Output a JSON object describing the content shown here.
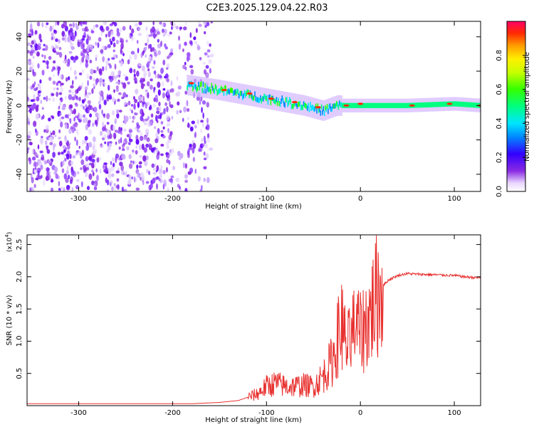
{
  "title": "C2E3.2025.129.04.22.R03",
  "chart_data": [
    {
      "type": "heatmap",
      "xlabel": "Height of straight line (km)",
      "ylabel": "Frequency (Hz)",
      "xlim": [
        -355,
        128
      ],
      "ylim": [
        -50,
        49
      ],
      "xticks": [
        -300,
        -200,
        -100,
        0,
        100
      ],
      "yticks": [
        -40,
        -20,
        0,
        20,
        40
      ],
      "colorbar": {
        "label": "Normalized spectral amplitude",
        "range": [
          0.0,
          1.0
        ],
        "ticks": [
          "0.0",
          "0.2",
          "0.4",
          "0.6",
          "0.8"
        ]
      },
      "features": {
        "noise_region_x": [
          -355,
          -158
        ],
        "signal_track": [
          {
            "x": -185,
            "y": 12
          },
          {
            "x": -150,
            "y": 9
          },
          {
            "x": -120,
            "y": 6
          },
          {
            "x": -90,
            "y": 3
          },
          {
            "x": -60,
            "y": 0
          },
          {
            "x": -40,
            "y": -3
          },
          {
            "x": -25,
            "y": 0
          },
          {
            "x": 0,
            "y": 0
          },
          {
            "x": 50,
            "y": 0
          },
          {
            "x": 100,
            "y": 1
          },
          {
            "x": 128,
            "y": 0
          }
        ]
      },
      "grid": false
    },
    {
      "type": "line",
      "xlabel": "Height of straight line (km)",
      "ylabel": "SNR (10 * v/v)",
      "yscale_label": "(x10^4)",
      "xlim": [
        -355,
        128
      ],
      "ylim": [
        0,
        2.65
      ],
      "xticks": [
        -300,
        -200,
        -100,
        0,
        100
      ],
      "yticks": [
        0.5,
        1.0,
        1.5,
        2.0,
        2.5
      ],
      "series": [
        {
          "color": "#e8312f",
          "x": [
            -355,
            -250,
            -180,
            -150,
            -130,
            -110,
            -100,
            -90,
            -80,
            -70,
            -60,
            -50,
            -40,
            -30,
            -25,
            -20,
            -15,
            -10,
            -5,
            0,
            10,
            20,
            30,
            40,
            50,
            60,
            80,
            100,
            110,
            128
          ],
          "y": [
            0.03,
            0.03,
            0.03,
            0.05,
            0.08,
            0.18,
            0.3,
            0.35,
            0.3,
            0.3,
            0.32,
            0.3,
            0.45,
            0.7,
            1.0,
            1.3,
            0.9,
            1.0,
            1.3,
            1.1,
            1.4,
            1.8,
            1.95,
            2.02,
            2.05,
            2.04,
            2.03,
            2.02,
            2.0,
            1.98
          ]
        }
      ],
      "grid": false
    }
  ]
}
